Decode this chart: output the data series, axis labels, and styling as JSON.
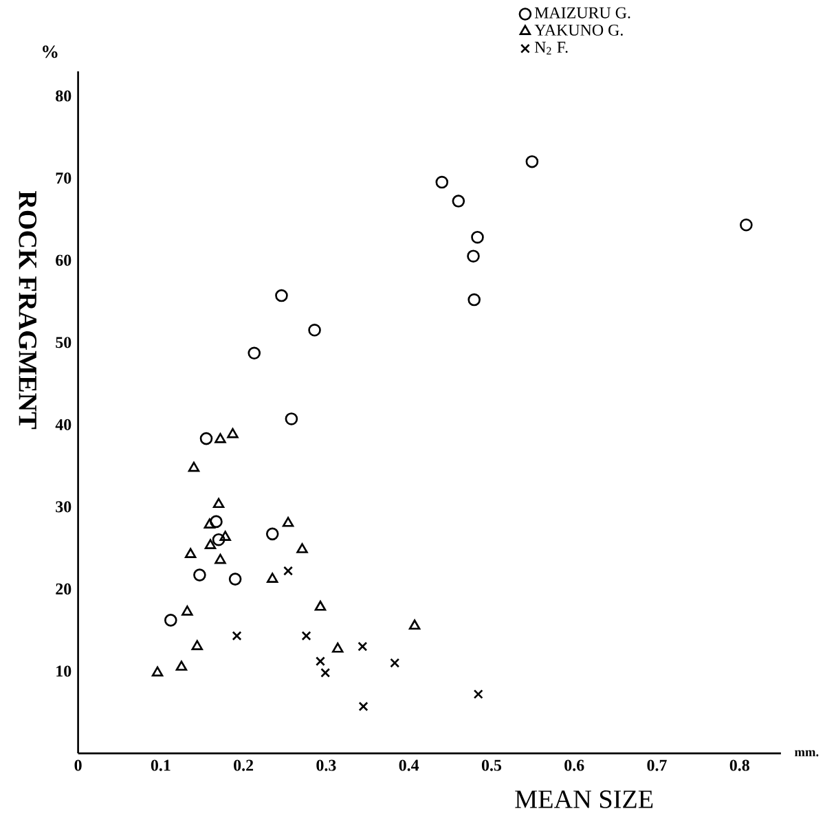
{
  "chart_data": {
    "type": "scatter",
    "xlabel": "MEAN SIZE",
    "ylabel": "ROCK FRAGMENT",
    "annotations": [
      "%",
      "mm."
    ],
    "xlim": [
      0,
      0.85
    ],
    "ylim": [
      0,
      83
    ],
    "xticks": [
      0,
      0.1,
      0.2,
      0.3,
      0.4,
      0.5,
      0.6,
      0.7,
      0.8
    ],
    "yticks": [
      10,
      20,
      30,
      40,
      50,
      60,
      70,
      80
    ],
    "grid": false,
    "legend": "top right",
    "series": [
      {
        "name": "MAIZURU G.",
        "color": "#000000",
        "marker": "circle",
        "x": [
          0.549,
          0.44,
          0.46,
          0.483,
          0.478,
          0.479,
          0.808,
          0.246,
          0.286,
          0.213,
          0.258,
          0.155,
          0.167,
          0.17,
          0.235,
          0.147,
          0.19,
          0.112
        ],
        "values": [
          72.0,
          69.5,
          67.2,
          62.8,
          60.5,
          55.2,
          64.3,
          55.7,
          51.5,
          48.7,
          40.7,
          38.3,
          28.2,
          26.0,
          26.7,
          21.7,
          21.2,
          16.2
        ]
      },
      {
        "name": "YAKUNO G.",
        "color": "#000000",
        "marker": "triangle",
        "x": [
          0.172,
          0.187,
          0.14,
          0.17,
          0.159,
          0.178,
          0.16,
          0.136,
          0.172,
          0.254,
          0.271,
          0.235,
          0.132,
          0.293,
          0.144,
          0.125,
          0.096,
          0.314,
          0.407
        ],
        "values": [
          38.2,
          38.8,
          34.7,
          30.3,
          27.8,
          26.3,
          25.3,
          24.2,
          23.5,
          28.0,
          24.8,
          21.2,
          17.2,
          17.8,
          13.0,
          10.5,
          9.8,
          12.7,
          15.5
        ]
      },
      {
        "name": "N$_{2}$ F.",
        "color": "#000000",
        "marker": "cross",
        "x": [
          0.192,
          0.254,
          0.276,
          0.293,
          0.299,
          0.344,
          0.345,
          0.383,
          0.484
        ],
        "values": [
          14.3,
          22.2,
          14.3,
          11.2,
          9.8,
          13.0,
          5.7,
          11.0,
          7.2
        ]
      }
    ]
  }
}
